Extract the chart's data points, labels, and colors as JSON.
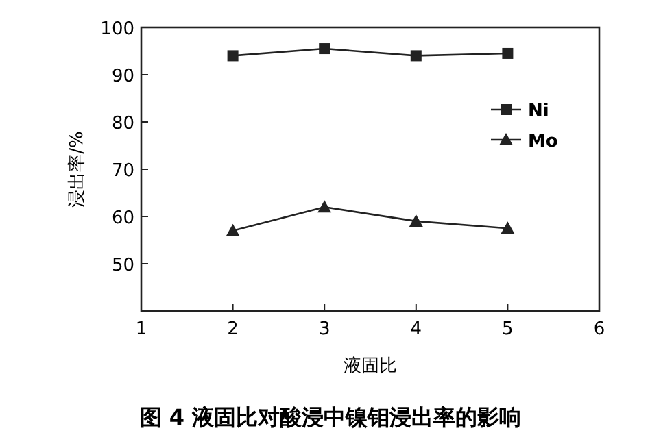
{
  "chart_data": {
    "type": "line",
    "title": "图 4   液固比对酸浸中镍钼浸出率的影响",
    "xlabel": "液固比",
    "ylabel": "浸出率/%",
    "x": [
      2,
      3,
      4,
      5
    ],
    "series": [
      {
        "name": "Ni",
        "color": "#222222",
        "marker": "square",
        "values": [
          94,
          95.5,
          94,
          94.5
        ]
      },
      {
        "name": "Mo",
        "color": "#222222",
        "marker": "triangle",
        "values": [
          57,
          62,
          59,
          57.5
        ]
      }
    ],
    "xlim": [
      1,
      6
    ],
    "xticks": [
      1,
      2,
      3,
      4,
      5,
      6
    ],
    "ylim": [
      40,
      100
    ],
    "yticks": [
      50,
      60,
      70,
      80,
      90,
      100
    ],
    "legend": "right",
    "grid": false,
    "line_style": "solid"
  }
}
